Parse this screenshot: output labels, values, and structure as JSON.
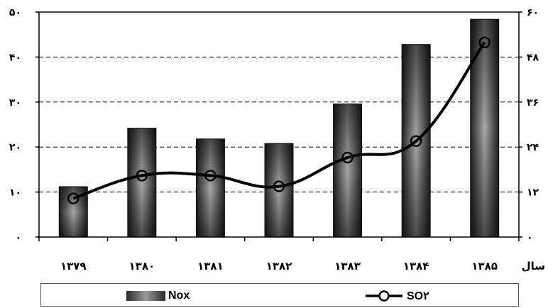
{
  "chart_data": {
    "type": "bar",
    "categories": [
      "۱۳۷۹",
      "۱۳۸۰",
      "۱۳۸۱",
      "۱۳۸۲",
      "۱۳۸۳",
      "۱۳۸۴",
      "۱۳۸۵"
    ],
    "xlabel": "سال",
    "series": [
      {
        "name": "Nox",
        "type": "bar",
        "axis": "left",
        "color": "#333333",
        "values": [
          11.2,
          24.2,
          21.8,
          20.8,
          29.6,
          42.8,
          48.4
        ]
      },
      {
        "name": "SO۲",
        "type": "line",
        "axis": "right",
        "marker": "circle-open",
        "color": "#000000",
        "values": [
          10.3,
          16.4,
          16.4,
          13.5,
          21.2,
          25.6,
          51.9
        ]
      }
    ],
    "left_axis": {
      "ylim": [
        0,
        50
      ],
      "ticks": [
        0,
        10,
        20,
        30,
        40,
        50
      ],
      "tick_labels": [
        "۰",
        "۱۰",
        "۲۰",
        "۳۰",
        "۴۰",
        "۵۰"
      ]
    },
    "right_axis": {
      "ylim": [
        0,
        60
      ],
      "ticks": [
        0,
        12,
        24,
        36,
        48,
        60
      ],
      "tick_labels": [
        "۰",
        "۱۲",
        "۲۴",
        "۳۶",
        "۴۸",
        "۶۰"
      ]
    },
    "grid": "horizontal-dashed",
    "legend_position": "bottom"
  }
}
